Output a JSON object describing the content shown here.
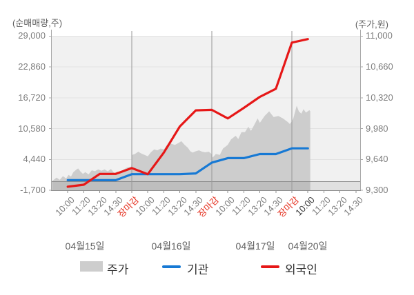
{
  "axis_captions": {
    "left": "(순매매량,주)",
    "right": "(주가,원)"
  },
  "axes": {
    "left_tick_labels": [
      "29,000",
      "22,860",
      "16,720",
      "10,580",
      "4,440",
      "-1,700"
    ],
    "right_tick_labels": [
      "11,000",
      "10,660",
      "10,320",
      "9,980",
      "9,640",
      "9,300"
    ]
  },
  "x_axis": {
    "days": [
      {
        "date": "04월15일",
        "times": [
          "10:00",
          "11:20",
          "13:20",
          "14:30",
          "장마감"
        ]
      },
      {
        "date": "04월16일",
        "times": [
          "10:00",
          "11:20",
          "13:20",
          "14:30",
          "장마감"
        ]
      },
      {
        "date": "04월17일",
        "times": [
          "10:00",
          "11:20",
          "13:20",
          "14:30",
          "장마감"
        ]
      },
      {
        "date": "04월20일",
        "times": [
          "10:00",
          "11:20",
          "13:20",
          "14:30"
        ]
      }
    ],
    "close_label": "장마감",
    "current_time_index": 15
  },
  "legend": {
    "price": {
      "label": "주가",
      "color": "#cdcdcd"
    },
    "institution": {
      "label": "기관",
      "color": "#1779d4"
    },
    "foreigner": {
      "label": "외국인",
      "color": "#e61717"
    }
  },
  "colors": {
    "plot_bg": "#f1f1f1",
    "grid": "#e2e2e2",
    "axis": "#a8a8a8",
    "bottom_axis": "#8f8f8f",
    "boundary": "#989898",
    "zero_line": "#8a8a8a",
    "negative_band": "rgba(0,0,0,0.07)",
    "time_label": "#7d7d7d",
    "close_label": "#e5301f",
    "current_label": "#383838"
  },
  "chart_data": {
    "type": "area+line",
    "title": "",
    "x_tick_labels": [
      "10:00",
      "11:20",
      "13:20",
      "14:30",
      "장마감",
      "10:00",
      "11:20",
      "13:20",
      "14:30",
      "장마감",
      "10:00",
      "11:20",
      "13:20",
      "14:30",
      "장마감",
      "10:00",
      "11:20",
      "13:20",
      "14:30"
    ],
    "day_dates": [
      "04월15일",
      "04월16일",
      "04월17일",
      "04월20일"
    ],
    "day_boundaries_after_tick": [
      5,
      10,
      15
    ],
    "ticks_per_full_day": 5,
    "visible_tick_count": 19,
    "left_axis": {
      "caption": "(순매매량,주)",
      "ticks": [
        29000,
        22860,
        16720,
        10580,
        4440,
        -1700
      ],
      "range": [
        -1700,
        29000
      ]
    },
    "right_axis": {
      "caption": "(주가,원)",
      "ticks": [
        11000,
        10660,
        10320,
        9980,
        9640,
        9300
      ],
      "range": [
        9300,
        11000
      ]
    },
    "zero_line_value": 0,
    "grid": true,
    "legend_position": "bottom",
    "series": [
      {
        "name": "주가",
        "type": "area",
        "axis": "right",
        "color": "#cdcdcd",
        "points": [
          [
            0.02,
            9400
          ],
          [
            0.3,
            9440
          ],
          [
            0.5,
            9415
          ],
          [
            0.7,
            9455
          ],
          [
            0.9,
            9430
          ],
          [
            1.05,
            9470
          ],
          [
            1.2,
            9450
          ],
          [
            1.35,
            9500
          ],
          [
            1.55,
            9530
          ],
          [
            1.65,
            9540
          ],
          [
            1.8,
            9505
          ],
          [
            1.95,
            9480
          ],
          [
            2.1,
            9500
          ],
          [
            2.3,
            9475
          ],
          [
            2.5,
            9520
          ],
          [
            2.7,
            9510
          ],
          [
            2.9,
            9530
          ],
          [
            3.1,
            9515
          ],
          [
            3.3,
            9530
          ],
          [
            3.5,
            9508
          ],
          [
            3.7,
            9535
          ],
          [
            3.9,
            9490
          ],
          [
            4.1,
            9505
          ],
          [
            4.3,
            9495
          ],
          [
            4.5,
            9530
          ],
          [
            4.7,
            9550
          ],
          [
            4.96,
            9560
          ],
          [
            5.02,
            9690
          ],
          [
            5.2,
            9700
          ],
          [
            5.4,
            9725
          ],
          [
            5.6,
            9705
          ],
          [
            5.8,
            9690
          ],
          [
            6.0,
            9675
          ],
          [
            6.2,
            9720
          ],
          [
            6.4,
            9750
          ],
          [
            6.6,
            9740
          ],
          [
            6.8,
            9760
          ],
          [
            7.0,
            9750
          ],
          [
            7.2,
            9800
          ],
          [
            7.35,
            9830
          ],
          [
            7.5,
            9810
          ],
          [
            7.7,
            9800
          ],
          [
            7.9,
            9820
          ],
          [
            8.1,
            9840
          ],
          [
            8.3,
            9800
          ],
          [
            8.5,
            9770
          ],
          [
            8.65,
            9730
          ],
          [
            8.8,
            9715
          ],
          [
            9.0,
            9730
          ],
          [
            9.2,
            9740
          ],
          [
            9.4,
            9725
          ],
          [
            9.6,
            9718
          ],
          [
            9.8,
            9725
          ],
          [
            9.96,
            9705
          ],
          [
            10.05,
            9660
          ],
          [
            10.25,
            9700
          ],
          [
            10.5,
            9690
          ],
          [
            10.7,
            9760
          ],
          [
            10.99,
            9800
          ],
          [
            11.2,
            9860
          ],
          [
            11.49,
            9900
          ],
          [
            11.65,
            9865
          ],
          [
            11.85,
            9940
          ],
          [
            12.07,
            9940
          ],
          [
            12.28,
            10000
          ],
          [
            12.45,
            9955
          ],
          [
            12.64,
            10017
          ],
          [
            12.86,
            10093
          ],
          [
            13.0,
            10043
          ],
          [
            13.3,
            10120
          ],
          [
            13.58,
            10170
          ],
          [
            13.86,
            10106
          ],
          [
            14.15,
            10119
          ],
          [
            14.44,
            10093
          ],
          [
            14.73,
            10055
          ],
          [
            14.87,
            10030
          ],
          [
            15.0,
            10060
          ],
          [
            15.09,
            10093
          ],
          [
            15.3,
            10232
          ],
          [
            15.44,
            10169
          ],
          [
            15.59,
            10144
          ],
          [
            15.73,
            10194
          ],
          [
            15.88,
            10156
          ],
          [
            16.09,
            10182
          ],
          [
            16.15,
            10170
          ]
        ]
      },
      {
        "name": "기관",
        "type": "line",
        "axis": "left",
        "color": "#1779d4",
        "x_start_tick": 1,
        "values": [
          300,
          300,
          300,
          300,
          1500,
          1500,
          1500,
          1500,
          1650,
          3800,
          4700,
          4700,
          5500,
          5500,
          6650,
          6650
        ]
      },
      {
        "name": "외국인",
        "type": "line",
        "axis": "left",
        "color": "#e61717",
        "x_start_tick": 1,
        "values": [
          -1000,
          -600,
          1550,
          1550,
          2700,
          1500,
          5800,
          11000,
          14200,
          14300,
          12600,
          14700,
          16900,
          18500,
          27700,
          28400
        ]
      }
    ]
  }
}
